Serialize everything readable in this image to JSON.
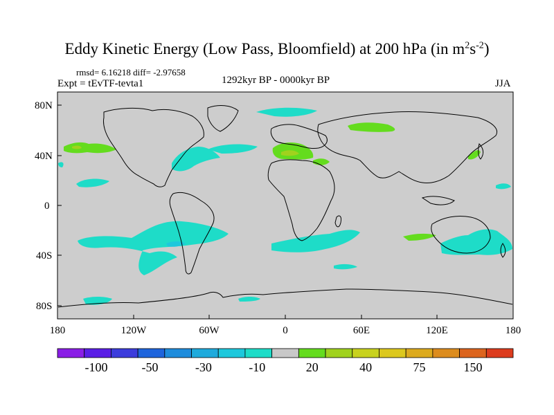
{
  "title": {
    "main": "Eddy Kinetic Energy (Low Pass, Bloomfield) at 200 hPa (in m",
    "sup1": "2",
    "mid": "s",
    "sup2": "-2",
    "end": ")"
  },
  "stats": "rmsd= 6.16218  diff= -2.97658",
  "experiment": "Expt = tEvTF-tevta1",
  "period": "1292kyr BP - 0000kyr BP",
  "season": "JJA",
  "lat_labels": [
    "80N",
    "40N",
    "0",
    "40S",
    "80S"
  ],
  "lon_labels": [
    "180",
    "120W",
    "60W",
    "0",
    "60E",
    "120E",
    "180"
  ],
  "colorbar": {
    "colors": [
      "#8a1ee6",
      "#5a1ee6",
      "#3c3cdc",
      "#1e64dc",
      "#1e8cdc",
      "#1eaadc",
      "#1ec8dc",
      "#1edcc8",
      "#c8c8c8",
      "#64dc1e",
      "#a0d21e",
      "#c8d21e",
      "#dcc81e",
      "#dcaa1e",
      "#dc8c1e",
      "#dc641e",
      "#dc3c1e"
    ],
    "labels": [
      "-100",
      "-50",
      "-30",
      "-10",
      "20",
      "40",
      "75",
      "150"
    ]
  },
  "colors": {
    "background": "#cdcdcd",
    "negative": "#1edcc8",
    "negative_strong": "#1ec8dc",
    "positive": "#64dc1e",
    "positive_strong": "#a0d21e"
  }
}
